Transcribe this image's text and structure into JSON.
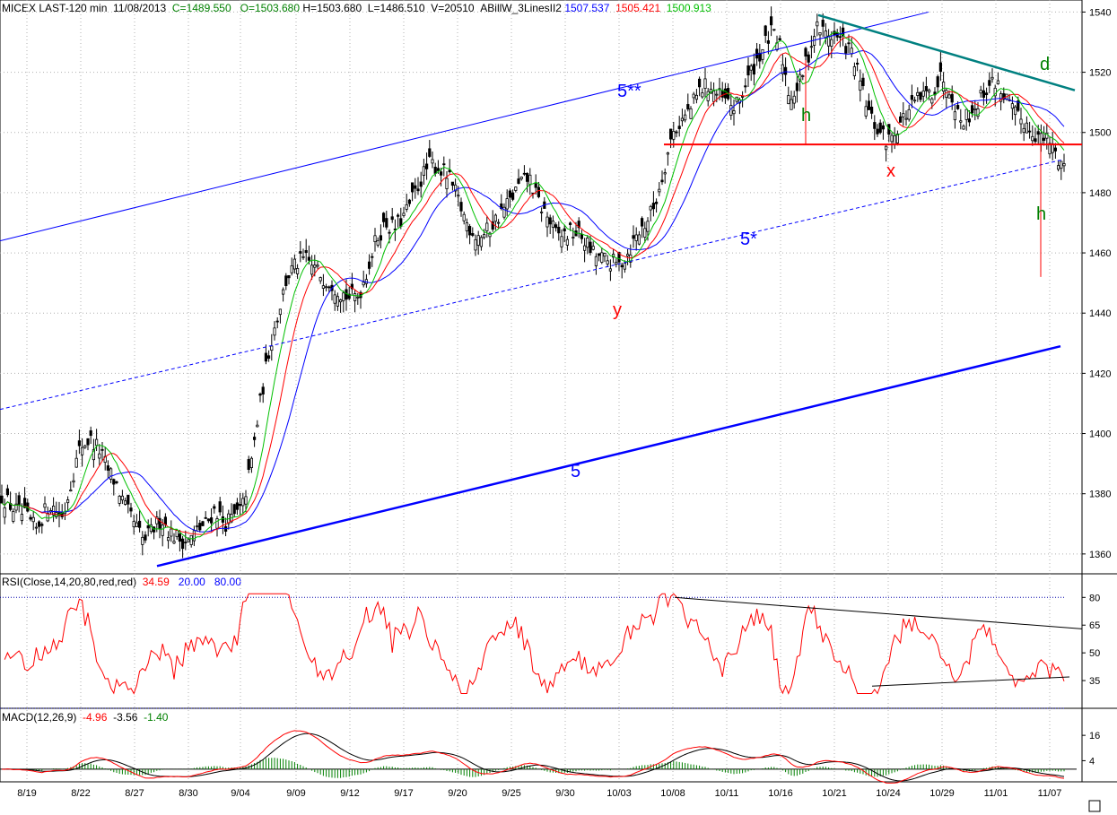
{
  "header": {
    "symbol": "MICEX LAST-120 min",
    "date": "11/08/2013",
    "close": "C=1489.550",
    "open": "O=1503.680",
    "high": "H=1503.680",
    "low": "L=1486.510",
    "volume": "V=20510",
    "indicator": "ABillW_3LinesII2",
    "line1": "1507.537",
    "line2": "1505.421",
    "line3": "1500.913"
  },
  "rsi_header": {
    "label": "RSI(Close,14,20,80,red,red)",
    "value": "34.59",
    "low": "20.00",
    "high": "80.00"
  },
  "macd_header": {
    "label": "MACD(12,26,9)",
    "v1": "-4.96",
    "v2": "-3.56",
    "v3": "-1.40"
  },
  "annotations": {
    "five_star_star": "5**",
    "five_star": "5*",
    "five": "5",
    "h1": "h",
    "h2": "h",
    "x": "x",
    "y": "y",
    "d": "d"
  },
  "colors": {
    "price": "#000000",
    "blue": "#0000ff",
    "red": "#ff0000",
    "green": "#00c000",
    "teal": "#008080",
    "dkgreen": "#008000",
    "navy": "#00008b",
    "grid": "#b0b0b0"
  },
  "chart_data": [
    {
      "type": "candlestick",
      "title": "MICEX LAST-120 min",
      "ylim": [
        1354,
        1544
      ],
      "yticks": [
        1360,
        1380,
        1400,
        1420,
        1440,
        1460,
        1480,
        1500,
        1520,
        1540
      ],
      "x_tick_labels": [
        "8/19",
        "8/22",
        "8/27",
        "8/30",
        "9/04",
        "9/09",
        "9/12",
        "9/17",
        "9/20",
        "9/25",
        "9/30",
        "10/03",
        "10/08",
        "10/11",
        "10/16",
        "10/21",
        "10/24",
        "10/29",
        "11/01",
        "11/07"
      ],
      "close_path": [
        [
          0,
          1380
        ],
        [
          15,
          1375
        ],
        [
          30,
          1372
        ],
        [
          40,
          1368
        ],
        [
          55,
          1377
        ],
        [
          70,
          1372
        ],
        [
          80,
          1385
        ],
        [
          90,
          1396
        ],
        [
          100,
          1398
        ],
        [
          110,
          1395
        ],
        [
          120,
          1388
        ],
        [
          130,
          1383
        ],
        [
          140,
          1375
        ],
        [
          150,
          1370
        ],
        [
          160,
          1364
        ],
        [
          170,
          1368
        ],
        [
          180,
          1372
        ],
        [
          190,
          1367
        ],
        [
          200,
          1365
        ],
        [
          210,
          1364
        ],
        [
          220,
          1368
        ],
        [
          230,
          1370
        ],
        [
          240,
          1375
        ],
        [
          250,
          1370
        ],
        [
          260,
          1372
        ],
        [
          270,
          1375
        ],
        [
          280,
          1390
        ],
        [
          290,
          1410
        ],
        [
          300,
          1428
        ],
        [
          310,
          1440
        ],
        [
          320,
          1452
        ],
        [
          330,
          1456
        ],
        [
          340,
          1458
        ],
        [
          350,
          1455
        ],
        [
          360,
          1452
        ],
        [
          370,
          1450
        ],
        [
          380,
          1447
        ],
        [
          390,
          1445
        ],
        [
          400,
          1446
        ],
        [
          410,
          1455
        ],
        [
          420,
          1465
        ],
        [
          430,
          1470
        ],
        [
          440,
          1468
        ],
        [
          450,
          1472
        ],
        [
          460,
          1478
        ],
        [
          470,
          1485
        ],
        [
          480,
          1490
        ],
        [
          490,
          1488
        ],
        [
          500,
          1485
        ],
        [
          510,
          1478
        ],
        [
          520,
          1470
        ],
        [
          530,
          1466
        ],
        [
          540,
          1466
        ],
        [
          550,
          1470
        ],
        [
          560,
          1474
        ],
        [
          570,
          1478
        ],
        [
          580,
          1483
        ],
        [
          590,
          1485
        ],
        [
          600,
          1477
        ],
        [
          610,
          1472
        ],
        [
          620,
          1466
        ],
        [
          630,
          1466
        ],
        [
          640,
          1467
        ],
        [
          650,
          1465
        ],
        [
          660,
          1460
        ],
        [
          670,
          1458
        ],
        [
          680,
          1457
        ],
        [
          690,
          1456
        ],
        [
          700,
          1460
        ],
        [
          710,
          1466
        ],
        [
          720,
          1470
        ],
        [
          730,
          1476
        ],
        [
          740,
          1488
        ],
        [
          750,
          1500
        ],
        [
          760,
          1504
        ],
        [
          770,
          1508
        ],
        [
          780,
          1514
        ],
        [
          790,
          1516
        ],
        [
          800,
          1512
        ],
        [
          810,
          1510
        ],
        [
          820,
          1508
        ],
        [
          830,
          1515
        ],
        [
          840,
          1522
        ],
        [
          850,
          1528
        ],
        [
          860,
          1533
        ],
        [
          870,
          1528
        ],
        [
          880,
          1512
        ],
        [
          890,
          1515
        ],
        [
          900,
          1525
        ],
        [
          910,
          1535
        ],
        [
          920,
          1533
        ],
        [
          930,
          1532
        ],
        [
          940,
          1530
        ],
        [
          950,
          1526
        ],
        [
          960,
          1515
        ],
        [
          970,
          1505
        ],
        [
          980,
          1500
        ],
        [
          990,
          1497
        ],
        [
          1000,
          1502
        ],
        [
          1010,
          1506
        ],
        [
          1020,
          1510
        ],
        [
          1030,
          1512
        ],
        [
          1040,
          1514
        ],
        [
          1050,
          1519
        ],
        [
          1060,
          1514
        ],
        [
          1070,
          1504
        ],
        [
          1080,
          1506
        ],
        [
          1090,
          1510
        ],
        [
          1100,
          1515
        ],
        [
          1110,
          1517
        ],
        [
          1120,
          1512
        ],
        [
          1130,
          1506
        ],
        [
          1140,
          1504
        ],
        [
          1150,
          1501
        ],
        [
          1160,
          1498
        ],
        [
          1170,
          1497
        ],
        [
          1180,
          1491
        ],
        [
          1188,
          1489
        ]
      ],
      "levels": {
        "neckline": 1496,
        "h_target": 1452
      },
      "trendlines": [
        {
          "name": "5**",
          "from": [
            0,
            1464
          ],
          "to": [
            1035,
            1540
          ],
          "style": "solid-thin"
        },
        {
          "name": "5*",
          "from": [
            0,
            1408
          ],
          "to": [
            1185,
            1491
          ],
          "style": "dashed"
        },
        {
          "name": "5",
          "from": [
            175,
            1356
          ],
          "to": [
            1182,
            1429
          ],
          "style": "solid-thick"
        },
        {
          "name": "d-line",
          "from": [
            912,
            1539
          ],
          "to": [
            1198,
            1514
          ],
          "style": "teal-thick"
        }
      ]
    },
    {
      "type": "line",
      "title": "RSI(Close,14,20,80,red,red)",
      "ylim": [
        20,
        85
      ],
      "yticks": [
        35,
        50,
        65,
        80
      ],
      "bands": [
        20,
        80
      ],
      "last": 34.59
    },
    {
      "type": "line",
      "title": "MACD(12,26,9)",
      "ylim": [
        -6,
        22
      ],
      "yticks": [
        4,
        16
      ],
      "last": [
        -4.96,
        -3.56,
        -1.4
      ]
    }
  ]
}
